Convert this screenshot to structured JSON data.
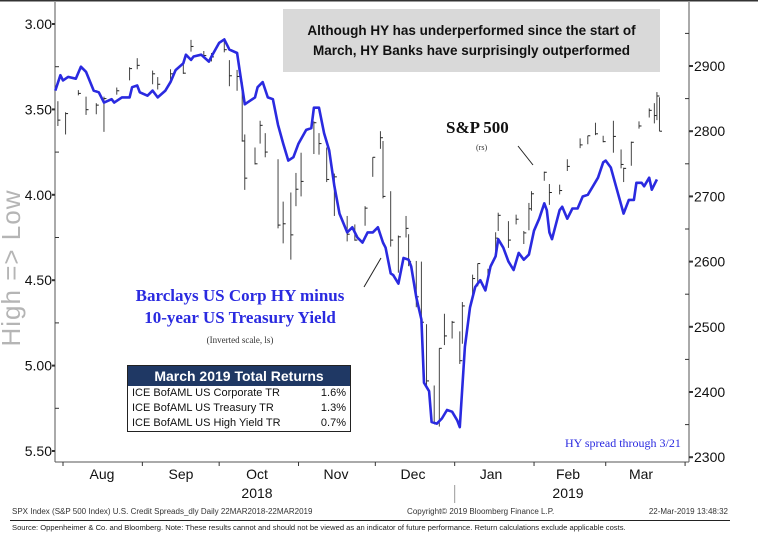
{
  "chart_data": {
    "type": "line",
    "title_box": [
      "Although HY has underperformed since the start of",
      "March, HY Banks have surprisingly outperformed"
    ],
    "left_axis": {
      "label": "High => Low",
      "range": [
        3.0,
        5.5
      ],
      "inverted": true,
      "ticks": [
        "3.00",
        "3.50",
        "4.00",
        "4.50",
        "5.00",
        "5.50"
      ]
    },
    "right_axis": {
      "range": [
        2300,
        2900
      ],
      "ticks": [
        "2900",
        "2800",
        "2700",
        "2600",
        "2500",
        "2400",
        "2300"
      ]
    },
    "x_axis": {
      "range": [
        "2018-07-29",
        "2019-04-02"
      ],
      "months": [
        "Aug",
        "Sep",
        "Oct",
        "Nov",
        "Dec",
        "Jan",
        "Feb",
        "Mar"
      ],
      "years": [
        "2018",
        "2019"
      ]
    },
    "grid": false,
    "series": [
      {
        "name": "Barclays US Corp HY minus 10-year US Treasury Yield",
        "axis": "left",
        "color": "#2a2ae0",
        "points": [
          [
            "2018-07-29",
            3.39
          ],
          [
            "2018-07-31",
            3.3
          ],
          [
            "2018-08-01",
            3.33
          ],
          [
            "2018-08-03",
            3.31
          ],
          [
            "2018-08-06",
            3.32
          ],
          [
            "2018-08-08",
            3.25
          ],
          [
            "2018-08-10",
            3.28
          ],
          [
            "2018-08-13",
            3.39
          ],
          [
            "2018-08-15",
            3.4
          ],
          [
            "2018-08-17",
            3.46
          ],
          [
            "2018-08-20",
            3.44
          ],
          [
            "2018-08-21",
            3.46
          ],
          [
            "2018-08-24",
            3.43
          ],
          [
            "2018-08-27",
            3.43
          ],
          [
            "2018-08-28",
            3.37
          ],
          [
            "2018-08-30",
            3.36
          ],
          [
            "2018-08-31",
            3.4
          ],
          [
            "2018-09-03",
            3.42
          ],
          [
            "2018-09-05",
            3.39
          ],
          [
            "2018-09-07",
            3.43
          ],
          [
            "2018-09-10",
            3.39
          ],
          [
            "2018-09-12",
            3.34
          ],
          [
            "2018-09-14",
            3.27
          ],
          [
            "2018-09-17",
            3.23
          ],
          [
            "2018-09-18",
            3.18
          ],
          [
            "2018-09-20",
            3.21
          ],
          [
            "2018-09-21",
            3.19
          ],
          [
            "2018-09-24",
            3.18
          ],
          [
            "2018-09-27",
            3.22
          ],
          [
            "2018-09-28",
            3.19
          ],
          [
            "2018-10-01",
            3.11
          ],
          [
            "2018-10-03",
            3.09
          ],
          [
            "2018-10-05",
            3.15
          ],
          [
            "2018-10-08",
            3.17
          ],
          [
            "2018-10-09",
            3.27
          ],
          [
            "2018-10-11",
            3.47
          ],
          [
            "2018-10-12",
            3.46
          ],
          [
            "2018-10-15",
            3.43
          ],
          [
            "2018-10-16",
            3.37
          ],
          [
            "2018-10-18",
            3.34
          ],
          [
            "2018-10-20",
            3.43
          ],
          [
            "2018-10-22",
            3.44
          ],
          [
            "2018-10-24",
            3.59
          ],
          [
            "2018-10-26",
            3.7
          ],
          [
            "2018-10-28",
            3.8
          ],
          [
            "2018-10-30",
            3.78
          ],
          [
            "2018-11-01",
            3.7
          ],
          [
            "2018-11-04",
            3.62
          ],
          [
            "2018-11-06",
            3.61
          ],
          [
            "2018-11-07",
            3.49
          ],
          [
            "2018-11-09",
            3.49
          ],
          [
            "2018-11-11",
            3.64
          ],
          [
            "2018-11-13",
            3.74
          ],
          [
            "2018-11-15",
            3.95
          ],
          [
            "2018-11-17",
            4.11
          ],
          [
            "2018-11-20",
            4.22
          ],
          [
            "2018-11-22",
            4.19
          ],
          [
            "2018-11-24",
            4.25
          ],
          [
            "2018-11-26",
            4.28
          ],
          [
            "2018-11-28",
            4.22
          ],
          [
            "2018-11-30",
            4.22
          ],
          [
            "2018-12-02",
            4.19
          ],
          [
            "2018-12-04",
            4.28
          ],
          [
            "2018-12-05",
            4.31
          ],
          [
            "2018-12-07",
            4.46
          ],
          [
            "2018-12-08",
            4.47
          ],
          [
            "2018-12-10",
            4.52
          ],
          [
            "2018-12-12",
            4.37
          ],
          [
            "2018-12-14",
            4.38
          ],
          [
            "2018-12-15",
            4.42
          ],
          [
            "2018-12-17",
            4.6
          ],
          [
            "2018-12-19",
            4.73
          ],
          [
            "2018-12-20",
            5.1
          ],
          [
            "2018-12-22",
            5.15
          ],
          [
            "2018-12-23",
            5.33
          ],
          [
            "2018-12-25",
            5.34
          ],
          [
            "2018-12-27",
            5.31
          ],
          [
            "2018-12-29",
            5.26
          ],
          [
            "2018-12-31",
            5.27
          ],
          [
            "2019-01-02",
            5.32
          ],
          [
            "2019-01-03",
            5.36
          ],
          [
            "2019-01-05",
            4.89
          ],
          [
            "2019-01-07",
            4.66
          ],
          [
            "2019-01-09",
            4.54
          ],
          [
            "2019-01-11",
            4.5
          ],
          [
            "2019-01-13",
            4.56
          ],
          [
            "2019-01-15",
            4.42
          ],
          [
            "2019-01-17",
            4.36
          ],
          [
            "2019-01-18",
            4.26
          ],
          [
            "2019-01-20",
            4.31
          ],
          [
            "2019-01-22",
            4.39
          ],
          [
            "2019-01-24",
            4.44
          ],
          [
            "2019-01-26",
            4.34
          ],
          [
            "2019-01-28",
            4.38
          ],
          [
            "2019-01-30",
            4.35
          ],
          [
            "2019-02-01",
            4.21
          ],
          [
            "2019-02-03",
            4.14
          ],
          [
            "2019-02-05",
            4.05
          ],
          [
            "2019-02-06",
            4.09
          ],
          [
            "2019-02-07",
            4.22
          ],
          [
            "2019-02-08",
            4.26
          ],
          [
            "2019-02-11",
            4.09
          ],
          [
            "2019-02-12",
            4.07
          ],
          [
            "2019-02-14",
            4.14
          ],
          [
            "2019-02-16",
            4.08
          ],
          [
            "2019-02-18",
            4.08
          ],
          [
            "2019-02-20",
            4.01
          ],
          [
            "2019-02-22",
            4.0
          ],
          [
            "2019-02-24",
            3.95
          ],
          [
            "2019-02-26",
            3.9
          ],
          [
            "2019-02-28",
            3.81
          ],
          [
            "2019-03-01",
            3.8
          ],
          [
            "2019-03-03",
            3.84
          ],
          [
            "2019-03-05",
            3.95
          ],
          [
            "2019-03-08",
            4.11
          ],
          [
            "2019-03-10",
            4.03
          ],
          [
            "2019-03-12",
            4.03
          ],
          [
            "2019-03-13",
            3.93
          ],
          [
            "2019-03-15",
            3.93
          ],
          [
            "2019-03-16",
            3.95
          ],
          [
            "2019-03-18",
            3.9
          ],
          [
            "2019-03-19",
            3.97
          ],
          [
            "2019-03-21",
            3.91
          ]
        ]
      },
      {
        "name": "S&P 500",
        "axis": "right",
        "style": "high-low-close bars",
        "color": "#333333",
        "bars": [
          [
            "2018-07-30",
            2846,
            2808,
            2817
          ],
          [
            "2018-08-02",
            2829,
            2795,
            2827
          ],
          [
            "2018-08-07",
            2863,
            2855,
            2858
          ],
          [
            "2018-08-10",
            2853,
            2825,
            2833
          ],
          [
            "2018-08-14",
            2843,
            2826,
            2840
          ],
          [
            "2018-08-17",
            2853,
            2799,
            2850
          ],
          [
            "2018-08-22",
            2867,
            2856,
            2862
          ],
          [
            "2018-08-27",
            2898,
            2878,
            2896
          ],
          [
            "2018-08-30",
            2912,
            2895,
            2901
          ],
          [
            "2018-09-05",
            2893,
            2872,
            2888
          ],
          [
            "2018-09-07",
            2883,
            2864,
            2872
          ],
          [
            "2018-09-12",
            2895,
            2879,
            2888
          ],
          [
            "2018-09-17",
            2908,
            2888,
            2889
          ],
          [
            "2018-09-20",
            2940,
            2922,
            2930
          ],
          [
            "2018-09-25",
            2923,
            2912,
            2916
          ],
          [
            "2018-09-28",
            2920,
            2907,
            2914
          ],
          [
            "2018-10-03",
            2939,
            2921,
            2925
          ],
          [
            "2018-10-05",
            2909,
            2869,
            2885
          ],
          [
            "2018-10-08",
            2894,
            2862,
            2884
          ],
          [
            "2018-10-10",
            2875,
            2784,
            2785
          ],
          [
            "2018-10-11",
            2795,
            2710,
            2728
          ],
          [
            "2018-10-15",
            2775,
            2749,
            2750
          ],
          [
            "2018-10-17",
            2816,
            2781,
            2809
          ],
          [
            "2018-10-19",
            2797,
            2760,
            2768
          ],
          [
            "2018-10-24",
            2757,
            2651,
            2656
          ],
          [
            "2018-10-26",
            2692,
            2628,
            2658
          ],
          [
            "2018-10-29",
            2706,
            2603,
            2641
          ],
          [
            "2018-10-31",
            2736,
            2685,
            2711
          ],
          [
            "2018-11-02",
            2767,
            2700,
            2723
          ],
          [
            "2018-11-07",
            2815,
            2765,
            2813
          ],
          [
            "2018-11-09",
            2797,
            2764,
            2781
          ],
          [
            "2018-11-12",
            2775,
            2722,
            2726
          ],
          [
            "2018-11-15",
            2735,
            2670,
            2730
          ],
          [
            "2018-11-20",
            2670,
            2631,
            2642
          ],
          [
            "2018-11-23",
            2657,
            2632,
            2633
          ],
          [
            "2018-11-27",
            2685,
            2655,
            2682
          ],
          [
            "2018-11-30",
            2760,
            2730,
            2760
          ],
          [
            "2018-12-03",
            2800,
            2773,
            2790
          ],
          [
            "2018-12-04",
            2785,
            2697,
            2700
          ],
          [
            "2018-12-07",
            2708,
            2623,
            2633
          ],
          [
            "2018-12-10",
            2640,
            2583,
            2638
          ],
          [
            "2018-12-13",
            2670,
            2637,
            2651
          ],
          [
            "2018-12-14",
            2642,
            2593,
            2600
          ],
          [
            "2018-12-17",
            2601,
            2530,
            2546
          ],
          [
            "2018-12-19",
            2600,
            2500,
            2507
          ],
          [
            "2018-12-21",
            2504,
            2409,
            2417
          ],
          [
            "2018-12-24",
            2410,
            2351,
            2351
          ],
          [
            "2018-12-26",
            2467,
            2347,
            2467
          ],
          [
            "2018-12-28",
            2520,
            2472,
            2486
          ],
          [
            "2018-12-31",
            2509,
            2482,
            2507
          ],
          [
            "2019-01-03",
            2493,
            2443,
            2448
          ],
          [
            "2019-01-04",
            2538,
            2474,
            2532
          ],
          [
            "2019-01-08",
            2580,
            2547,
            2574
          ],
          [
            "2019-01-10",
            2597,
            2562,
            2597
          ],
          [
            "2019-01-14",
            2589,
            2571,
            2583
          ],
          [
            "2019-01-17",
            2645,
            2606,
            2636
          ],
          [
            "2019-01-18",
            2675,
            2647,
            2671
          ],
          [
            "2019-01-22",
            2662,
            2621,
            2633
          ],
          [
            "2019-01-25",
            2672,
            2657,
            2665
          ],
          [
            "2019-01-28",
            2647,
            2627,
            2644
          ],
          [
            "2019-01-30",
            2690,
            2648,
            2681
          ],
          [
            "2019-01-31",
            2708,
            2678,
            2704
          ],
          [
            "2019-02-05",
            2738,
            2724,
            2737
          ],
          [
            "2019-02-07",
            2719,
            2687,
            2706
          ],
          [
            "2019-02-11",
            2718,
            2703,
            2709
          ],
          [
            "2019-02-14",
            2757,
            2739,
            2746
          ],
          [
            "2019-02-19",
            2789,
            2774,
            2779
          ],
          [
            "2019-02-22",
            2793,
            2780,
            2793
          ],
          [
            "2019-02-25",
            2813,
            2794,
            2796
          ],
          [
            "2019-02-28",
            2793,
            2783,
            2784
          ],
          [
            "2019-03-04",
            2816,
            2767,
            2792
          ],
          [
            "2019-03-07",
            2772,
            2743,
            2749
          ],
          [
            "2019-03-08",
            2744,
            2722,
            2743
          ],
          [
            "2019-03-11",
            2784,
            2747,
            2783
          ],
          [
            "2019-03-14",
            2815,
            2804,
            2808
          ],
          [
            "2019-03-18",
            2835,
            2821,
            2832
          ],
          [
            "2019-03-20",
            2843,
            2812,
            2824
          ],
          [
            "2019-03-21",
            2860,
            2817,
            2854
          ],
          [
            "2019-03-22",
            2852,
            2800,
            2800
          ]
        ]
      }
    ],
    "annotations": {
      "sp_label": "S&P 500",
      "sp_sub": "(rs)",
      "hy_label": [
        "Barclays US Corp HY minus",
        "10-year US Treasury Yield"
      ],
      "hy_sub": "(Inverted scale, ls)",
      "hy_through": "HY spread through 3/21"
    },
    "returns_table": {
      "title": "March 2019 Total Returns",
      "rows": [
        {
          "label": "ICE BofAML US Corporate TR",
          "value": "1.6%"
        },
        {
          "label": "ICE BofAML US Treasury TR",
          "value": "1.3%"
        },
        {
          "label": "ICE BofAML US High Yield TR",
          "value": "0.7%"
        }
      ]
    }
  },
  "footer": {
    "left": "SPX Index (S&P 500 Index) U.S. Credit Spreads_dly  Daily 22MAR2018-22MAR2019",
    "center": "Copyright© 2019 Bloomberg Finance L.P.",
    "right": "22-Mar-2019 13:48:32",
    "source": "Source: Oppenheimer & Co. and Bloomberg. Note:  These results cannot and should not be viewed as an indicator of future performance.  Return calculations exclude applicable costs."
  }
}
